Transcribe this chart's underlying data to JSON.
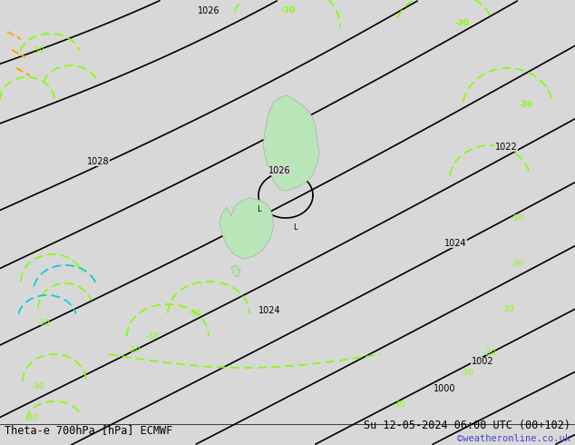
{
  "title_left": "Theta-e 700hPa [hPa] ECMWF",
  "title_right": "Su 12-05-2024 06:00 UTC (00+102)",
  "watermark": "©weatheronline.co.uk",
  "bg_color": "#d8d8d8",
  "land_color": "#b8e6b8",
  "land_border_color": "#aaaaaa",
  "pressure_line_color": "#000000",
  "theta_line_color": "#7fff00",
  "theta_cyan_color": "#00cccc",
  "theta_orange_color": "#ffa500",
  "title_fontsize": 9,
  "watermark_color": "#4444cc",
  "fig_width": 6.34,
  "fig_height": 4.9,
  "dpi": 100
}
